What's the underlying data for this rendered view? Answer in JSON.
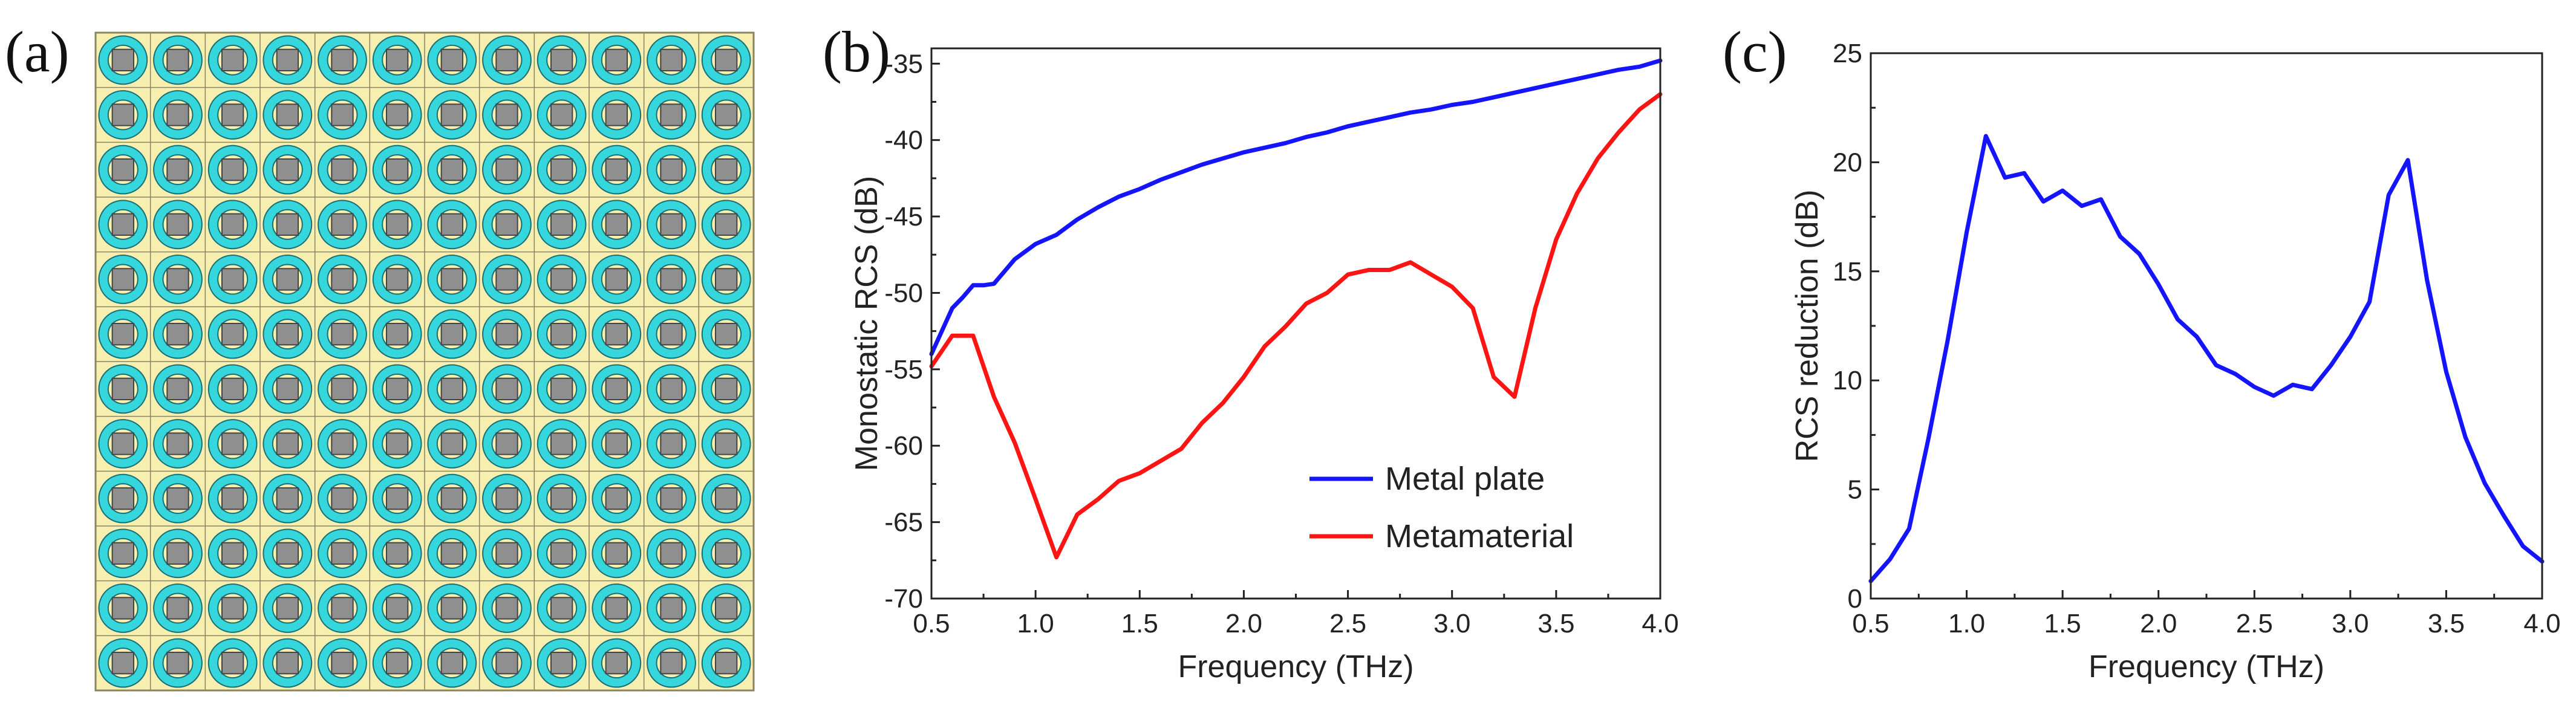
{
  "panel_a": {
    "label": "(a)",
    "grid": {
      "rows": 12,
      "cols": 12
    },
    "colors": {
      "background": "#f7efb0",
      "ring": "#35d6dc",
      "ring_stroke": "#1a6f74",
      "square": "#8f8f8f",
      "grid_line": "#8a8460"
    }
  },
  "chart_data": [
    {
      "type": "line",
      "panel_label": "(b)",
      "xlabel": "Frequency (THz)",
      "ylabel": "Monostatic RCS (dB)",
      "xlim": [
        0.5,
        4.0
      ],
      "ylim": [
        -70,
        -34
      ],
      "xticks": [
        0.5,
        1.0,
        1.5,
        2.0,
        2.5,
        3.0,
        3.5,
        4.0
      ],
      "xtick_labels": [
        "0.5",
        "1.0",
        "1.5",
        "2.0",
        "2.5",
        "3.0",
        "3.5",
        "4.0"
      ],
      "yticks": [
        -70,
        -65,
        -60,
        -55,
        -50,
        -45,
        -40,
        -35
      ],
      "ytick_labels": [
        "-70",
        "-65",
        "-60",
        "-55",
        "-50",
        "-45",
        "-40",
        "-35"
      ],
      "legend_position": "bottom-right",
      "series": [
        {
          "name": "Metal plate",
          "color": "#1414ff",
          "x": [
            0.5,
            0.55,
            0.6,
            0.65,
            0.7,
            0.75,
            0.8,
            0.85,
            0.9,
            1.0,
            1.1,
            1.2,
            1.3,
            1.4,
            1.5,
            1.6,
            1.7,
            1.8,
            1.9,
            2.0,
            2.1,
            2.2,
            2.3,
            2.4,
            2.5,
            2.6,
            2.7,
            2.8,
            2.9,
            3.0,
            3.1,
            3.2,
            3.3,
            3.4,
            3.5,
            3.6,
            3.7,
            3.8,
            3.9,
            4.0
          ],
          "y": [
            -54.0,
            -52.5,
            -51.0,
            -50.3,
            -49.5,
            -49.5,
            -49.4,
            -48.6,
            -47.8,
            -46.8,
            -46.2,
            -45.2,
            -44.4,
            -43.7,
            -43.2,
            -42.6,
            -42.1,
            -41.6,
            -41.2,
            -40.8,
            -40.5,
            -40.2,
            -39.8,
            -39.5,
            -39.1,
            -38.8,
            -38.5,
            -38.2,
            -38.0,
            -37.7,
            -37.5,
            -37.2,
            -36.9,
            -36.6,
            -36.3,
            -36.0,
            -35.7,
            -35.4,
            -35.2,
            -34.8
          ]
        },
        {
          "name": "Metamaterial",
          "color": "#ff1414",
          "x": [
            0.5,
            0.6,
            0.7,
            0.8,
            0.9,
            1.0,
            1.1,
            1.2,
            1.3,
            1.4,
            1.5,
            1.6,
            1.7,
            1.8,
            1.9,
            2.0,
            2.1,
            2.2,
            2.3,
            2.4,
            2.5,
            2.6,
            2.7,
            2.8,
            2.9,
            3.0,
            3.1,
            3.2,
            3.3,
            3.4,
            3.5,
            3.6,
            3.7,
            3.8,
            3.9,
            4.0
          ],
          "y": [
            -54.8,
            -52.8,
            -52.8,
            -56.8,
            -59.8,
            -63.5,
            -67.3,
            -64.5,
            -63.5,
            -62.3,
            -61.8,
            -61.0,
            -60.2,
            -58.5,
            -57.2,
            -55.5,
            -53.5,
            -52.2,
            -50.7,
            -50.0,
            -48.8,
            -48.5,
            -48.5,
            -48.0,
            -48.8,
            -49.6,
            -51.0,
            -55.5,
            -56.8,
            -51.0,
            -46.5,
            -43.5,
            -41.2,
            -39.5,
            -38.0,
            -37.0
          ]
        }
      ]
    },
    {
      "type": "line",
      "panel_label": "(c)",
      "xlabel": "Frequency (THz)",
      "ylabel": "RCS reduction (dB)",
      "xlim": [
        0.5,
        4.0
      ],
      "ylim": [
        0,
        25
      ],
      "xticks": [
        0.5,
        1.0,
        1.5,
        2.0,
        2.5,
        3.0,
        3.5,
        4.0
      ],
      "xtick_labels": [
        "0.5",
        "1.0",
        "1.5",
        "2.0",
        "2.5",
        "3.0",
        "3.5",
        "4.0"
      ],
      "yticks": [
        0,
        5,
        10,
        15,
        20,
        25
      ],
      "ytick_labels": [
        "0",
        "5",
        "10",
        "15",
        "20",
        "25"
      ],
      "series": [
        {
          "name": "RCS reduction",
          "color": "#1414ff",
          "x": [
            0.5,
            0.6,
            0.7,
            0.8,
            0.9,
            1.0,
            1.1,
            1.2,
            1.3,
            1.4,
            1.5,
            1.6,
            1.7,
            1.8,
            1.9,
            2.0,
            2.1,
            2.2,
            2.3,
            2.4,
            2.5,
            2.6,
            2.7,
            2.8,
            2.9,
            3.0,
            3.1,
            3.2,
            3.3,
            3.4,
            3.5,
            3.6,
            3.7,
            3.8,
            3.9,
            4.0
          ],
          "y": [
            0.8,
            1.8,
            3.2,
            7.3,
            11.8,
            16.8,
            21.2,
            19.3,
            19.5,
            18.2,
            18.7,
            18.0,
            18.3,
            16.6,
            15.8,
            14.4,
            12.8,
            12.0,
            10.7,
            10.3,
            9.7,
            9.3,
            9.8,
            9.6,
            10.7,
            12.0,
            13.6,
            18.5,
            20.1,
            14.6,
            10.4,
            7.4,
            5.3,
            3.8,
            2.4,
            1.7
          ]
        }
      ]
    }
  ]
}
